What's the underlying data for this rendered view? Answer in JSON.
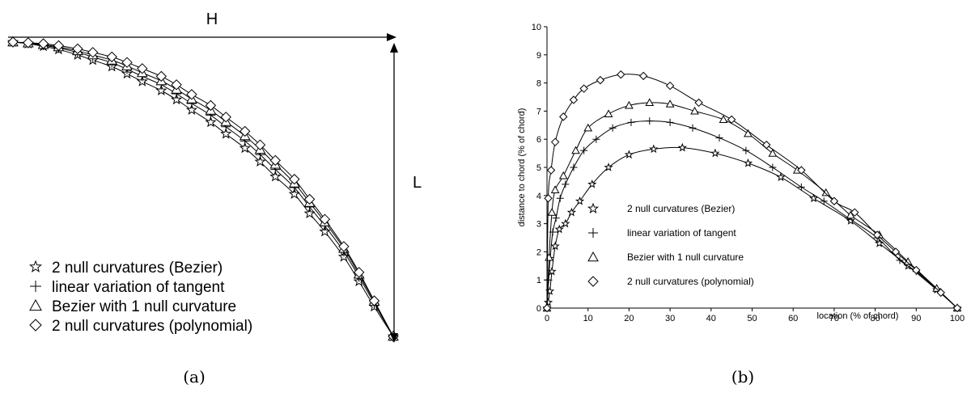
{
  "panel_a": {
    "caption": "(a)",
    "h_label": "H",
    "l_label": "L"
  },
  "panel_b": {
    "caption": "(b)"
  },
  "series_styles": [
    {
      "name": "2 null curvatures (Bezier)",
      "marker": "star"
    },
    {
      "name": "linear variation of tangent",
      "marker": "plus"
    },
    {
      "name": "Bezier with 1 null curvature",
      "marker": "triangle"
    },
    {
      "name": "2 null curvatures (polynomial)",
      "marker": "diamond"
    }
  ],
  "chart_data": [
    {
      "type": "line",
      "title": "",
      "xlabel": "",
      "ylabel": "",
      "axes": "none",
      "legend": "bottom-left",
      "series": [
        {
          "name": "2 null curvatures (Bezier)",
          "x": [
            0,
            4,
            8,
            12,
            17,
            21,
            26,
            30,
            34,
            39,
            43,
            47,
            52,
            56,
            61,
            65,
            69,
            74,
            78,
            82,
            87,
            91,
            95,
            100
          ],
          "y": [
            0,
            0.5,
            1.3,
            2.3,
            4.0,
            5.6,
            7.6,
            9.8,
            12.2,
            15.0,
            17.8,
            21.0,
            24.8,
            28.4,
            32.8,
            37.0,
            41.6,
            47.0,
            53.0,
            58.6,
            66.4,
            74.0,
            81.8,
            91.0
          ]
        },
        {
          "name": "linear variation of tangent",
          "x": [
            0,
            4,
            8,
            12,
            17,
            21,
            26,
            30,
            34,
            39,
            43,
            47,
            52,
            56,
            61,
            65,
            69,
            74,
            78,
            82,
            87,
            91,
            95,
            100
          ],
          "y": [
            0,
            0.4,
            1.0,
            1.8,
            3.2,
            4.6,
            6.4,
            8.4,
            10.6,
            13.2,
            16.0,
            19.0,
            22.6,
            26.2,
            30.6,
            34.8,
            39.4,
            45.0,
            51.0,
            56.8,
            64.8,
            72.6,
            80.8,
            91.0
          ]
        },
        {
          "name": "Bezier with 1 null curvature",
          "x": [
            0,
            4,
            8,
            12,
            17,
            21,
            26,
            30,
            34,
            39,
            43,
            47,
            52,
            56,
            61,
            65,
            69,
            74,
            78,
            82,
            87,
            91,
            95,
            100
          ],
          "y": [
            0,
            0.3,
            0.8,
            1.5,
            2.7,
            4.0,
            5.6,
            7.4,
            9.5,
            12.0,
            14.6,
            17.6,
            21.1,
            24.6,
            29.0,
            33.2,
            37.8,
            43.6,
            49.6,
            55.6,
            63.8,
            71.8,
            80.2,
            91.0
          ]
        },
        {
          "name": "2 null curvatures (polynomial)",
          "x": [
            0,
            4,
            8,
            12,
            17,
            21,
            26,
            30,
            34,
            39,
            43,
            47,
            52,
            56,
            61,
            65,
            69,
            74,
            78,
            82,
            87,
            91,
            95,
            100
          ],
          "y": [
            0,
            0.2,
            0.5,
            1.1,
            2.1,
            3.2,
            4.6,
            6.3,
            8.2,
            10.6,
            13.2,
            16.2,
            19.6,
            23.2,
            27.6,
            31.8,
            36.6,
            42.4,
            48.6,
            54.8,
            63.2,
            71.2,
            80.0,
            91.0
          ]
        }
      ]
    },
    {
      "type": "line",
      "title": "",
      "xlabel": "location (% of chord)",
      "ylabel": "distance to chord (% of chord)",
      "xlim": [
        0,
        100
      ],
      "ylim": [
        0,
        10
      ],
      "xticks": [
        0,
        10,
        20,
        30,
        40,
        50,
        60,
        70,
        80,
        90,
        100
      ],
      "yticks": [
        0,
        1,
        2,
        3,
        4,
        5,
        6,
        7,
        8,
        9,
        10
      ],
      "grid": false,
      "legend": "bottom-left-inside",
      "series": [
        {
          "name": "2 null curvatures (Bezier)",
          "x": [
            0,
            0.3,
            0.7,
            1.2,
            2,
            3,
            4.5,
            6,
            8,
            11,
            15,
            20,
            26,
            33,
            41,
            49,
            57,
            65,
            74,
            81,
            88,
            95,
            100
          ],
          "y": [
            0,
            0.2,
            0.6,
            1.3,
            2.2,
            2.8,
            3.0,
            3.4,
            3.8,
            4.4,
            5.0,
            5.45,
            5.65,
            5.7,
            5.5,
            5.15,
            4.65,
            3.9,
            3.1,
            2.3,
            1.5,
            0.65,
            0
          ]
        },
        {
          "name": "linear variation of tangent",
          "x": [
            0,
            0.4,
            0.8,
            1.4,
            2.2,
            3.2,
            4.5,
            6.5,
            9,
            12,
            16,
            20.5,
            25,
            30,
            35.5,
            42,
            48.5,
            55,
            62,
            67.5,
            73.5,
            80.5,
            86,
            90,
            96,
            100
          ],
          "y": [
            0,
            1.0,
            1.8,
            2.7,
            3.2,
            3.9,
            4.4,
            5.0,
            5.6,
            6.0,
            6.4,
            6.6,
            6.65,
            6.6,
            6.4,
            6.05,
            5.6,
            5.0,
            4.3,
            3.8,
            3.2,
            2.5,
            1.7,
            1.3,
            0.55,
            0
          ]
        },
        {
          "name": "Bezier with 1 null curvature",
          "x": [
            0,
            0.5,
            1.2,
            2,
            4,
            7,
            10,
            15,
            20,
            25,
            30,
            36,
            43,
            49,
            55,
            61,
            68,
            74,
            81,
            88,
            95,
            100
          ],
          "y": [
            0,
            1.8,
            3.4,
            4.2,
            4.7,
            5.6,
            6.4,
            6.9,
            7.2,
            7.3,
            7.25,
            7.0,
            6.7,
            6.2,
            5.5,
            4.9,
            4.1,
            3.3,
            2.6,
            1.65,
            0.7,
            0
          ]
        },
        {
          "name": "2 null curvatures (polynomial)",
          "x": [
            0,
            0.3,
            1,
            2,
            4,
            6.5,
            9,
            13,
            18,
            23.5,
            30,
            37,
            45,
            53.5,
            62,
            70,
            75,
            80.5,
            85,
            90,
            96,
            100
          ],
          "y": [
            0,
            3.9,
            4.9,
            5.9,
            6.8,
            7.4,
            7.8,
            8.1,
            8.3,
            8.25,
            7.9,
            7.3,
            6.7,
            5.8,
            4.9,
            3.8,
            3.4,
            2.6,
            2.0,
            1.35,
            0.55,
            0
          ]
        }
      ]
    }
  ]
}
